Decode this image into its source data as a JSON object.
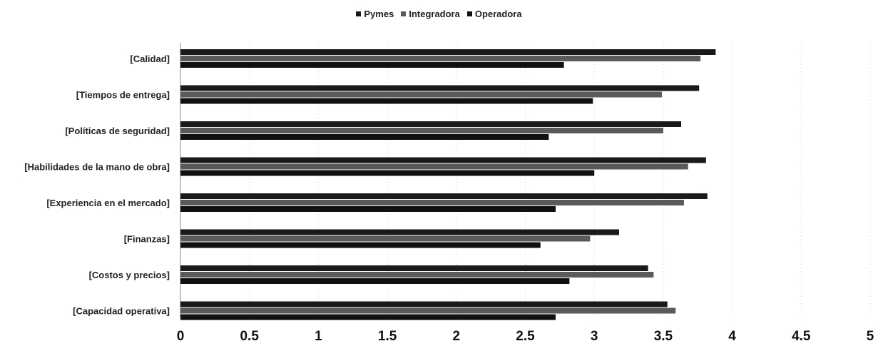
{
  "chart_data": {
    "type": "bar",
    "orientation": "horizontal",
    "title": "",
    "xlabel": "",
    "ylabel": "",
    "categories": [
      "[Calidad]",
      "[Tiempos de entrega]",
      "[Políticas de seguridad]",
      "[Habilidades de la mano de obra]",
      "[Experiencia en el mercado]",
      "[Finanzas]",
      "[Costos y precios]",
      "[Capacidad operativa]"
    ],
    "series": [
      {
        "name": "Pymes",
        "color": "#1a1a1a",
        "values": [
          3.88,
          3.76,
          3.63,
          3.81,
          3.82,
          3.18,
          3.39,
          3.53
        ]
      },
      {
        "name": "Integradora",
        "color": "#5a5a5a",
        "values": [
          3.77,
          3.49,
          3.5,
          3.68,
          3.65,
          2.97,
          3.43,
          3.59
        ]
      },
      {
        "name": "Operadora",
        "color": "#111111",
        "values": [
          2.78,
          2.99,
          2.67,
          3.0,
          2.72,
          2.61,
          2.82,
          2.72
        ]
      }
    ],
    "xlim": [
      0,
      5
    ],
    "x_ticks": [
      "0",
      "0.5",
      "1",
      "1.5",
      "2",
      "2.5",
      "3",
      "3.5",
      "4",
      "4.5",
      "5"
    ],
    "grid": true,
    "legend_position": "top"
  }
}
